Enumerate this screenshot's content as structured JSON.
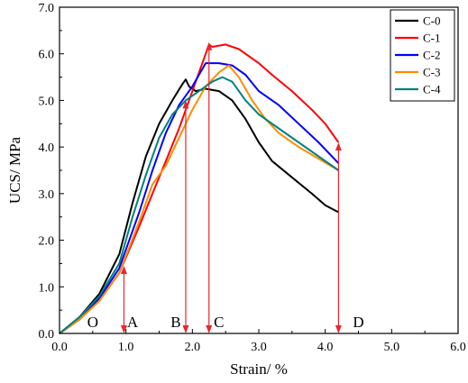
{
  "chart_data": {
    "type": "line",
    "xlabel": "Strain/ %",
    "ylabel": "UCS/ MPa",
    "xlim": [
      0.0,
      6.0
    ],
    "ylim": [
      0.0,
      7.0
    ],
    "x_ticks": [
      "0.0",
      "1.0",
      "2.0",
      "3.0",
      "4.0",
      "5.0",
      "6.0"
    ],
    "y_ticks": [
      "0.0",
      "1.0",
      "2.0",
      "3.0",
      "4.0",
      "5.0",
      "6.0",
      "7.0"
    ],
    "legend_position": "top-right",
    "series": [
      {
        "name": "C-0",
        "color": "#000000",
        "points": [
          [
            0,
            0
          ],
          [
            0.3,
            0.35
          ],
          [
            0.6,
            0.85
          ],
          [
            0.9,
            1.7
          ],
          [
            1.1,
            2.8
          ],
          [
            1.3,
            3.8
          ],
          [
            1.5,
            4.5
          ],
          [
            1.7,
            5.0
          ],
          [
            1.85,
            5.35
          ],
          [
            1.9,
            5.45
          ],
          [
            1.95,
            5.3
          ],
          [
            2.05,
            5.2
          ],
          [
            2.2,
            5.25
          ],
          [
            2.4,
            5.2
          ],
          [
            2.6,
            5.0
          ],
          [
            2.8,
            4.6
          ],
          [
            3.0,
            4.1
          ],
          [
            3.2,
            3.7
          ],
          [
            3.5,
            3.35
          ],
          [
            3.8,
            3.0
          ],
          [
            4.0,
            2.75
          ],
          [
            4.2,
            2.6
          ]
        ]
      },
      {
        "name": "C-1",
        "color": "#ff0000",
        "points": [
          [
            0,
            0
          ],
          [
            0.3,
            0.3
          ],
          [
            0.6,
            0.7
          ],
          [
            0.9,
            1.3
          ],
          [
            1.2,
            2.3
          ],
          [
            1.4,
            3.0
          ],
          [
            1.6,
            3.7
          ],
          [
            1.8,
            4.4
          ],
          [
            1.95,
            5.0
          ],
          [
            2.1,
            5.6
          ],
          [
            2.25,
            6.2
          ],
          [
            2.3,
            6.15
          ],
          [
            2.5,
            6.2
          ],
          [
            2.7,
            6.1
          ],
          [
            3.0,
            5.8
          ],
          [
            3.2,
            5.55
          ],
          [
            3.5,
            5.2
          ],
          [
            3.8,
            4.8
          ],
          [
            4.0,
            4.5
          ],
          [
            4.2,
            4.1
          ]
        ]
      },
      {
        "name": "C-2",
        "color": "#0000ff",
        "points": [
          [
            0,
            0
          ],
          [
            0.3,
            0.3
          ],
          [
            0.6,
            0.75
          ],
          [
            0.9,
            1.4
          ],
          [
            1.2,
            2.6
          ],
          [
            1.4,
            3.5
          ],
          [
            1.6,
            4.3
          ],
          [
            1.8,
            4.9
          ],
          [
            2.0,
            5.3
          ],
          [
            2.2,
            5.8
          ],
          [
            2.4,
            5.8
          ],
          [
            2.6,
            5.75
          ],
          [
            2.8,
            5.55
          ],
          [
            3.0,
            5.2
          ],
          [
            3.3,
            4.9
          ],
          [
            3.6,
            4.5
          ],
          [
            3.9,
            4.1
          ],
          [
            4.2,
            3.65
          ]
        ]
      },
      {
        "name": "C-3",
        "color": "#ff8c00",
        "points": [
          [
            0,
            0
          ],
          [
            0.3,
            0.3
          ],
          [
            0.6,
            0.7
          ],
          [
            0.9,
            1.3
          ],
          [
            1.2,
            2.4
          ],
          [
            1.4,
            3.2
          ],
          [
            1.6,
            3.6
          ],
          [
            1.8,
            4.2
          ],
          [
            2.0,
            4.8
          ],
          [
            2.2,
            5.3
          ],
          [
            2.4,
            5.6
          ],
          [
            2.55,
            5.75
          ],
          [
            2.7,
            5.5
          ],
          [
            2.9,
            5.0
          ],
          [
            3.1,
            4.6
          ],
          [
            3.3,
            4.3
          ],
          [
            3.6,
            4.0
          ],
          [
            3.9,
            3.75
          ],
          [
            4.2,
            3.5
          ]
        ]
      },
      {
        "name": "C-4",
        "color": "#008080",
        "points": [
          [
            0,
            0
          ],
          [
            0.3,
            0.35
          ],
          [
            0.6,
            0.8
          ],
          [
            0.9,
            1.5
          ],
          [
            1.1,
            2.5
          ],
          [
            1.3,
            3.4
          ],
          [
            1.5,
            4.2
          ],
          [
            1.7,
            4.7
          ],
          [
            1.9,
            5.0
          ],
          [
            2.1,
            5.2
          ],
          [
            2.3,
            5.4
          ],
          [
            2.45,
            5.5
          ],
          [
            2.6,
            5.4
          ],
          [
            2.8,
            5.0
          ],
          [
            3.0,
            4.7
          ],
          [
            3.3,
            4.4
          ],
          [
            3.6,
            4.1
          ],
          [
            3.9,
            3.8
          ],
          [
            4.2,
            3.5
          ]
        ]
      }
    ],
    "arrow_color": "#e8262f",
    "arrows": [
      {
        "x": 0.97,
        "y_from": 0.0,
        "y_to": 1.45
      },
      {
        "x": 1.9,
        "y_from": 0.0,
        "y_to": 5.0
      },
      {
        "x": 2.25,
        "y_from": 0.0,
        "y_to": 6.25
      },
      {
        "x": 4.2,
        "y_from": 0.0,
        "y_to": 4.1
      }
    ],
    "point_labels": [
      {
        "text": "O",
        "x": 0.5,
        "y": 0.25
      },
      {
        "text": "A",
        "x": 1.1,
        "y": 0.25
      },
      {
        "text": "B",
        "x": 1.75,
        "y": 0.25
      },
      {
        "text": "C",
        "x": 2.4,
        "y": 0.25
      },
      {
        "text": "D",
        "x": 4.5,
        "y": 0.25
      }
    ]
  }
}
